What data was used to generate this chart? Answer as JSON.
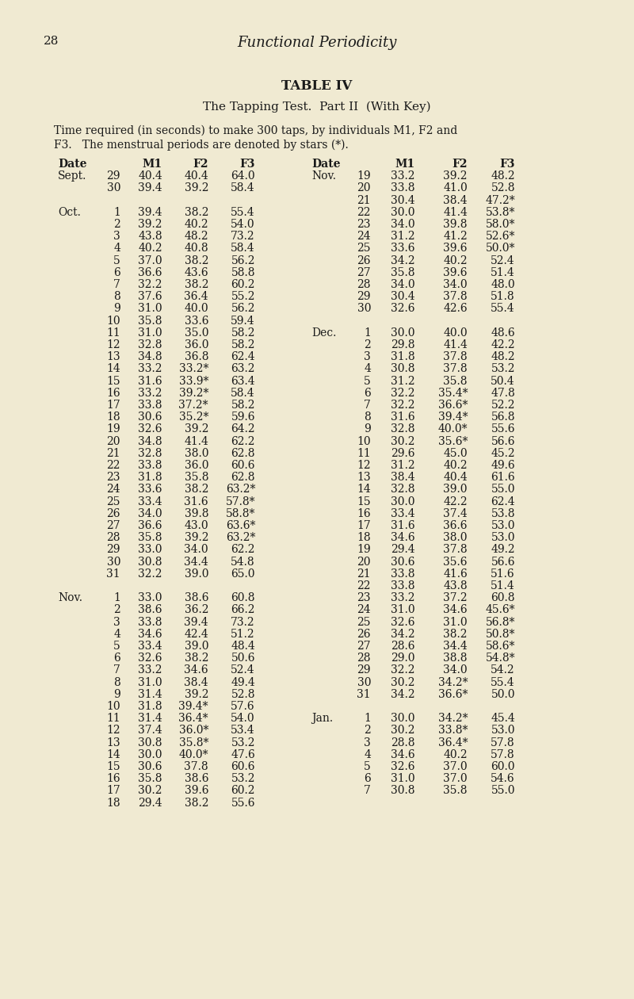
{
  "page_number": "28",
  "page_header": "Functional Periodicity",
  "table_title": "TABLE IV",
  "subtitle": "The Tapping Test.  Part II  (With Key)",
  "description_line1": "    Time required (in seconds) to make 300 taps, by individuals M1, F2 and",
  "description_line2": "F3.   The menstrual periods are denoted by stars (*).",
  "bg_color": "#f0ead2",
  "text_color": "#1a1a1a",
  "left_data": [
    [
      "Sept.",
      "29",
      "40.4",
      "40.4",
      "64.0"
    ],
    [
      "",
      "30",
      "39.4",
      "39.2",
      "58.4"
    ],
    [
      "",
      "",
      "",
      "",
      ""
    ],
    [
      "Oct.",
      "1",
      "39.4",
      "38.2",
      "55.4"
    ],
    [
      "",
      "2",
      "39.2",
      "40.2",
      "54.0"
    ],
    [
      "",
      "3",
      "43.8",
      "48.2",
      "73.2"
    ],
    [
      "",
      "4",
      "40.2",
      "40.8",
      "58.4"
    ],
    [
      "",
      "5",
      "37.0",
      "38.2",
      "56.2"
    ],
    [
      "",
      "6",
      "36.6",
      "43.6",
      "58.8"
    ],
    [
      "",
      "7",
      "32.2",
      "38.2",
      "60.2"
    ],
    [
      "",
      "8",
      "37.6",
      "36.4",
      "55.2"
    ],
    [
      "",
      "9",
      "31.0",
      "40.0",
      "56.2"
    ],
    [
      "",
      "10",
      "35.8",
      "33.6",
      "59.4"
    ],
    [
      "",
      "11",
      "31.0",
      "35.0",
      "58.2"
    ],
    [
      "",
      "12",
      "32.8",
      "36.0",
      "58.2"
    ],
    [
      "",
      "13",
      "34.8",
      "36.8",
      "62.4"
    ],
    [
      "",
      "14",
      "33.2",
      "33.2*",
      "63.2"
    ],
    [
      "",
      "15",
      "31.6",
      "33.9*",
      "63.4"
    ],
    [
      "",
      "16",
      "33.2",
      "39.2*",
      "58.4"
    ],
    [
      "",
      "17",
      "33.8",
      "37.2*",
      "58.2"
    ],
    [
      "",
      "18",
      "30.6",
      "35.2*",
      "59.6"
    ],
    [
      "",
      "19",
      "32.6",
      "39.2",
      "64.2"
    ],
    [
      "",
      "20",
      "34.8",
      "41.4",
      "62.2"
    ],
    [
      "",
      "21",
      "32.8",
      "38.0",
      "62.8"
    ],
    [
      "",
      "22",
      "33.8",
      "36.0",
      "60.6"
    ],
    [
      "",
      "23",
      "31.8",
      "35.8",
      "62.8"
    ],
    [
      "",
      "24",
      "33.6",
      "38.2",
      "63.2*"
    ],
    [
      "",
      "25",
      "33.4",
      "31.6",
      "57.8*"
    ],
    [
      "",
      "26",
      "34.0",
      "39.8",
      "58.8*"
    ],
    [
      "",
      "27",
      "36.6",
      "43.0",
      "63.6*"
    ],
    [
      "",
      "28",
      "35.8",
      "39.2",
      "63.2*"
    ],
    [
      "",
      "29",
      "33.0",
      "34.0",
      "62.2"
    ],
    [
      "",
      "30",
      "30.8",
      "34.4",
      "54.8"
    ],
    [
      "",
      "31",
      "32.2",
      "39.0",
      "65.0"
    ],
    [
      "",
      "",
      "",
      "",
      ""
    ],
    [
      "Nov.",
      "1",
      "33.0",
      "38.6",
      "60.8"
    ],
    [
      "",
      "2",
      "38.6",
      "36.2",
      "66.2"
    ],
    [
      "",
      "3",
      "33.8",
      "39.4",
      "73.2"
    ],
    [
      "",
      "4",
      "34.6",
      "42.4",
      "51.2"
    ],
    [
      "",
      "5",
      "33.4",
      "39.0",
      "48.4"
    ],
    [
      "",
      "6",
      "32.6",
      "38.2",
      "50.6"
    ],
    [
      "",
      "7",
      "33.2",
      "34.6",
      "52.4"
    ],
    [
      "",
      "8",
      "31.0",
      "38.4",
      "49.4"
    ],
    [
      "",
      "9",
      "31.4",
      "39.2",
      "52.8"
    ],
    [
      "",
      "10",
      "31.8",
      "39.4*",
      "57.6"
    ],
    [
      "",
      "11",
      "31.4",
      "36.4*",
      "54.0"
    ],
    [
      "",
      "12",
      "37.4",
      "36.0*",
      "53.4"
    ],
    [
      "",
      "13",
      "30.8",
      "35.8*",
      "53.2"
    ],
    [
      "",
      "14",
      "30.0",
      "40.0*",
      "47.6"
    ],
    [
      "",
      "15",
      "30.6",
      "37.8",
      "60.6"
    ],
    [
      "",
      "16",
      "35.8",
      "38.6",
      "53.2"
    ],
    [
      "",
      "17",
      "30.2",
      "39.6",
      "60.2"
    ],
    [
      "",
      "18",
      "29.4",
      "38.2",
      "55.6"
    ]
  ],
  "right_data": [
    [
      "Nov.",
      "19",
      "33.2",
      "39.2",
      "48.2"
    ],
    [
      "",
      "20",
      "33.8",
      "41.0",
      "52.8"
    ],
    [
      "",
      "21",
      "30.4",
      "38.4",
      "47.2*"
    ],
    [
      "",
      "22",
      "30.0",
      "41.4",
      "53.8*"
    ],
    [
      "",
      "23",
      "34.0",
      "39.8",
      "58.0*"
    ],
    [
      "",
      "24",
      "31.2",
      "41.2",
      "52.6*"
    ],
    [
      "",
      "25",
      "33.6",
      "39.6",
      "50.0*"
    ],
    [
      "",
      "26",
      "34.2",
      "40.2",
      "52.4"
    ],
    [
      "",
      "27",
      "35.8",
      "39.6",
      "51.4"
    ],
    [
      "",
      "28",
      "34.0",
      "34.0",
      "48.0"
    ],
    [
      "",
      "29",
      "30.4",
      "37.8",
      "51.8"
    ],
    [
      "",
      "30",
      "32.6",
      "42.6",
      "55.4"
    ],
    [
      "",
      "",
      "",
      "",
      ""
    ],
    [
      "Dec.",
      "1",
      "30.0",
      "40.0",
      "48.6"
    ],
    [
      "",
      "2",
      "29.8",
      "41.4",
      "42.2"
    ],
    [
      "",
      "3",
      "31.8",
      "37.8",
      "48.2"
    ],
    [
      "",
      "4",
      "30.8",
      "37.8",
      "53.2"
    ],
    [
      "",
      "5",
      "31.2",
      "35.8",
      "50.4"
    ],
    [
      "",
      "6",
      "32.2",
      "35.4*",
      "47.8"
    ],
    [
      "",
      "7",
      "32.2",
      "36.6*",
      "52.2"
    ],
    [
      "",
      "8",
      "31.6",
      "39.4*",
      "56.8"
    ],
    [
      "",
      "9",
      "32.8",
      "40.0*",
      "55.6"
    ],
    [
      "",
      "10",
      "30.2",
      "35.6*",
      "56.6"
    ],
    [
      "",
      "11",
      "29.6",
      "45.0",
      "45.2"
    ],
    [
      "",
      "12",
      "31.2",
      "40.2",
      "49.6"
    ],
    [
      "",
      "13",
      "38.4",
      "40.4",
      "61.6"
    ],
    [
      "",
      "14",
      "32.8",
      "39.0",
      "55.0"
    ],
    [
      "",
      "15",
      "30.0",
      "42.2",
      "62.4"
    ],
    [
      "",
      "16",
      "33.4",
      "37.4",
      "53.8"
    ],
    [
      "",
      "17",
      "31.6",
      "36.6",
      "53.0"
    ],
    [
      "",
      "18",
      "34.6",
      "38.0",
      "53.0"
    ],
    [
      "",
      "19",
      "29.4",
      "37.8",
      "49.2"
    ],
    [
      "",
      "20",
      "30.6",
      "35.6",
      "56.6"
    ],
    [
      "",
      "21",
      "33.8",
      "41.6",
      "51.6"
    ],
    [
      "",
      "22",
      "33.8",
      "43.8",
      "51.4"
    ],
    [
      "",
      "23",
      "33.2",
      "37.2",
      "60.8"
    ],
    [
      "",
      "24",
      "31.0",
      "34.6",
      "45.6*"
    ],
    [
      "",
      "25",
      "32.6",
      "31.0",
      "56.8*"
    ],
    [
      "",
      "26",
      "34.2",
      "38.2",
      "50.8*"
    ],
    [
      "",
      "27",
      "28.6",
      "34.4",
      "58.6*"
    ],
    [
      "",
      "28",
      "29.0",
      "38.8",
      "54.8*"
    ],
    [
      "",
      "29",
      "32.2",
      "34.0",
      "54.2"
    ],
    [
      "",
      "30",
      "30.2",
      "34.2*",
      "55.4"
    ],
    [
      "",
      "31",
      "34.2",
      "36.6*",
      "50.0"
    ],
    [
      "",
      "",
      "",
      "",
      ""
    ],
    [
      "Jan.",
      "1",
      "30.0",
      "34.2*",
      "45.4"
    ],
    [
      "",
      "2",
      "30.2",
      "33.8*",
      "53.0"
    ],
    [
      "",
      "3",
      "28.8",
      "36.4*",
      "57.8"
    ],
    [
      "",
      "4",
      "34.6",
      "40.2",
      "57.8"
    ],
    [
      "",
      "5",
      "32.6",
      "37.0",
      "60.0"
    ],
    [
      "",
      "6",
      "31.0",
      "37.0",
      "54.6"
    ],
    [
      "",
      "7",
      "30.8",
      "35.8",
      "55.0"
    ]
  ]
}
